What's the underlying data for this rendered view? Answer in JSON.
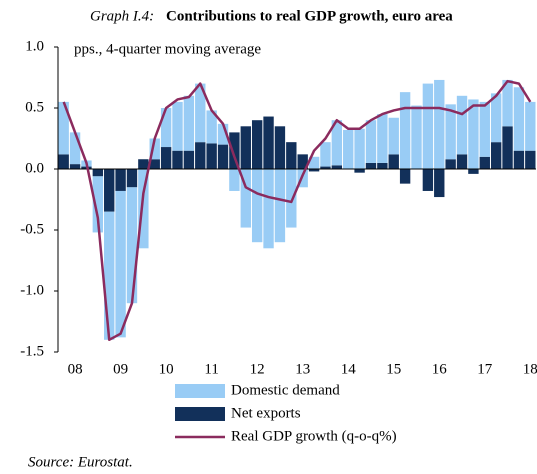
{
  "chart_data": {
    "type": "bar",
    "title_label": "Graph I.4:",
    "title": "Contributions to real GDP growth, euro area",
    "subtitle": "pps., 4-quarter moving average",
    "source": "Source: Eurostat.",
    "categories": [
      null,
      "08",
      null,
      null,
      null,
      "09",
      null,
      null,
      null,
      "10",
      null,
      null,
      null,
      "11",
      null,
      null,
      null,
      "12",
      null,
      null,
      null,
      "13",
      null,
      null,
      null,
      "14",
      null,
      null,
      null,
      "15",
      null,
      null,
      null,
      "16",
      null,
      null,
      null,
      "17",
      null,
      null,
      null,
      "18"
    ],
    "series": [
      {
        "name": "Domestic demand",
        "color": "#99ccf5",
        "type": "bar",
        "values": [
          0.43,
          0.26,
          0.05,
          -0.46,
          -1.05,
          -1.2,
          -0.95,
          -0.65,
          0.17,
          0.32,
          0.4,
          0.45,
          0.48,
          0.27,
          0.17,
          -0.18,
          -0.48,
          -0.6,
          -0.65,
          -0.6,
          -0.48,
          -0.15,
          0.1,
          0.2,
          0.37,
          0.32,
          0.33,
          0.35,
          0.4,
          0.3,
          0.63,
          0.52,
          0.7,
          0.73,
          0.45,
          0.48,
          0.57,
          0.45,
          0.4,
          0.38,
          0.52,
          0.4
        ]
      },
      {
        "name": "Net exports",
        "color": "#12305a",
        "type": "bar",
        "values": [
          0.12,
          0.04,
          0.02,
          -0.06,
          -0.35,
          -0.18,
          -0.15,
          0.08,
          0.08,
          0.18,
          0.15,
          0.15,
          0.22,
          0.21,
          0.2,
          0.3,
          0.35,
          0.4,
          0.43,
          0.35,
          0.22,
          0.12,
          -0.02,
          0.02,
          0.03,
          0.0,
          -0.03,
          0.05,
          0.05,
          0.12,
          -0.12,
          0.0,
          -0.18,
          -0.23,
          0.08,
          0.12,
          -0.04,
          0.1,
          0.22,
          0.35,
          0.15,
          0.15
        ]
      },
      {
        "name": "Real GDP growth (q-o-q%)",
        "color": "#8b2b5e",
        "type": "line",
        "values": [
          0.55,
          0.3,
          0.05,
          -0.4,
          -1.4,
          -1.35,
          -1.1,
          -0.2,
          0.25,
          0.5,
          0.57,
          0.59,
          0.7,
          0.48,
          0.37,
          0.1,
          -0.15,
          -0.2,
          -0.23,
          -0.25,
          -0.27,
          -0.05,
          0.15,
          0.25,
          0.4,
          0.33,
          0.33,
          0.4,
          0.45,
          0.48,
          0.5,
          0.5,
          0.5,
          0.5,
          0.48,
          0.45,
          0.52,
          0.52,
          0.6,
          0.72,
          0.7,
          0.55
        ]
      }
    ],
    "ylim": [
      -1.5,
      1.0
    ],
    "yticks": [
      {
        "value": 1.0,
        "label": "1.0"
      },
      0.5,
      {
        "value": 0.0,
        "label": "0.0"
      },
      -0.5,
      {
        "value": -1.0,
        "label": "-1.0"
      },
      -1.5
    ],
    "grid": false
  }
}
